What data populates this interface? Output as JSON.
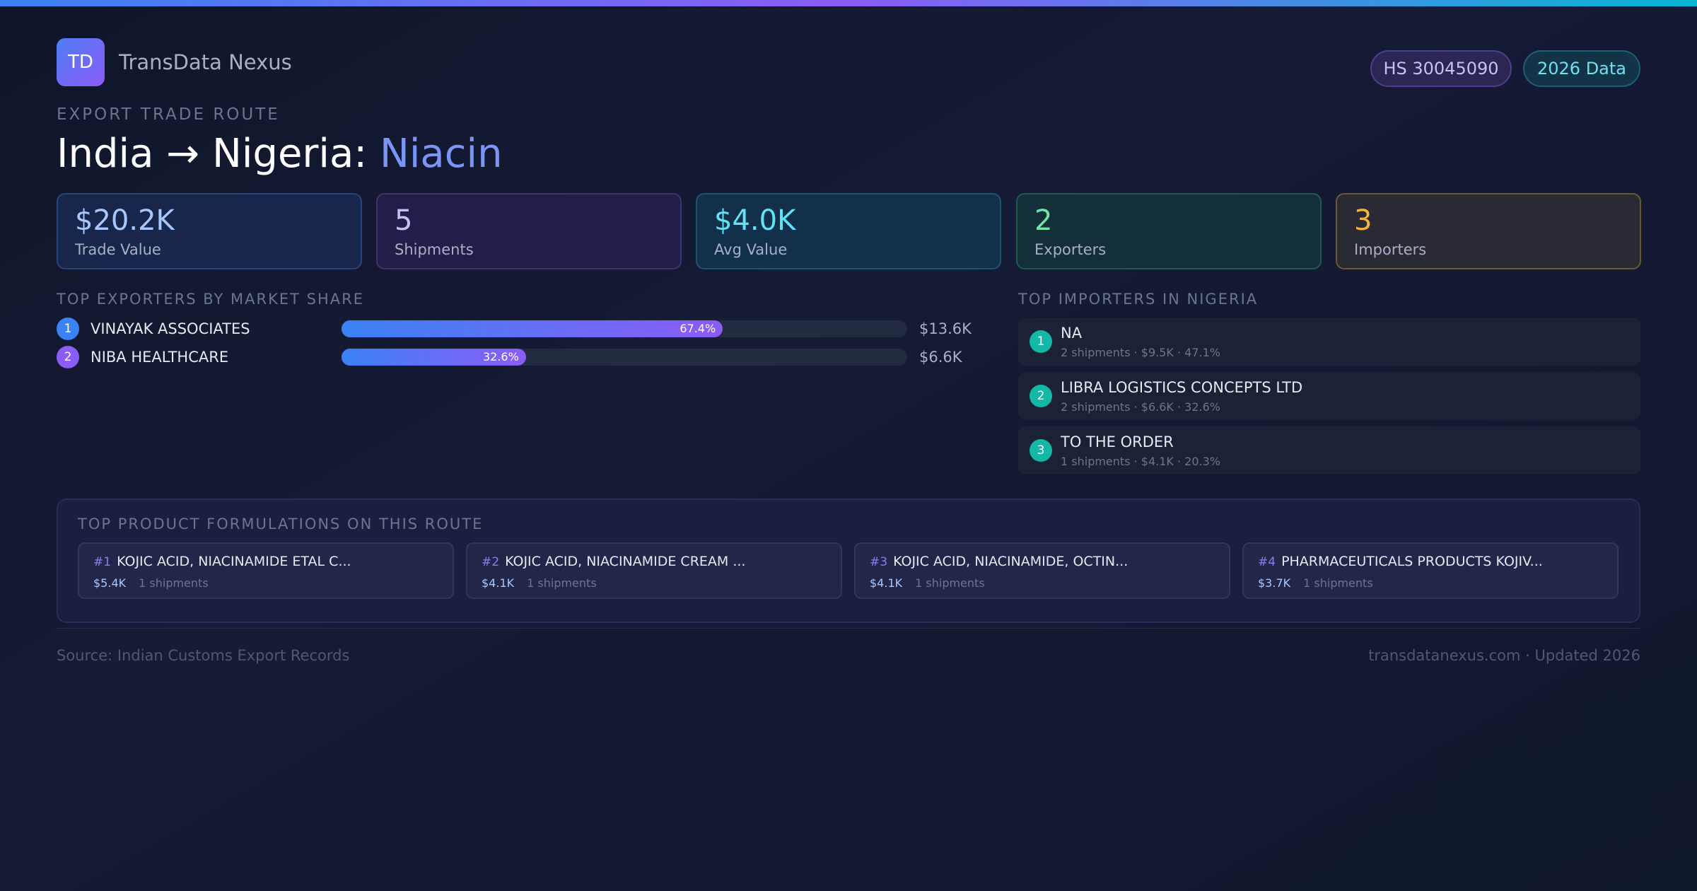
{
  "brand": {
    "logo_text": "TD",
    "name": "TransData Nexus"
  },
  "badges": {
    "hs_code": "HS 30045090",
    "data_year": "2026 Data"
  },
  "eyebrow": "EXPORT TRADE ROUTE",
  "route": {
    "prefix": "India → Nigeria: ",
    "product": "Niacin"
  },
  "stats": [
    {
      "value": "$20.2K",
      "label": "Trade Value"
    },
    {
      "value": "5",
      "label": "Shipments"
    },
    {
      "value": "$4.0K",
      "label": "Avg Value"
    },
    {
      "value": "2",
      "label": "Exporters"
    },
    {
      "value": "3",
      "label": "Importers"
    }
  ],
  "exporters": {
    "heading": "TOP EXPORTERS BY MARKET SHARE",
    "items": [
      {
        "rank": "1",
        "name": "VINAYAK ASSOCIATES",
        "share": 67.4,
        "share_label": "67.4%",
        "value": "$13.6K",
        "rank_color": "#3b82f6"
      },
      {
        "rank": "2",
        "name": "NIBA HEALTHCARE",
        "share": 32.6,
        "share_label": "32.6%",
        "value": "$6.6K",
        "rank_color": "#8b5cf6"
      }
    ]
  },
  "importers": {
    "heading": "TOP IMPORTERS IN NIGERIA",
    "items": [
      {
        "rank": "1",
        "name": "NA",
        "meta": "2 shipments · $9.5K · 47.1%"
      },
      {
        "rank": "2",
        "name": "LIBRA LOGISTICS CONCEPTS LTD",
        "meta": "2 shipments · $6.6K · 32.6%"
      },
      {
        "rank": "3",
        "name": "TO THE ORDER",
        "meta": "1 shipments · $4.1K · 20.3%"
      }
    ]
  },
  "products": {
    "heading": "TOP PRODUCT FORMULATIONS ON THIS ROUTE",
    "items": [
      {
        "num": "#1",
        "name": "KOJIC ACID, NIACINAMIDE ETAL C...",
        "value": "$5.4K",
        "shipments": "1 shipments"
      },
      {
        "num": "#2",
        "name": "KOJIC ACID, NIACINAMIDE CREAM ...",
        "value": "$4.1K",
        "shipments": "1 shipments"
      },
      {
        "num": "#3",
        "name": "KOJIC ACID, NIACINAMIDE, OCTIN...",
        "value": "$4.1K",
        "shipments": "1 shipments"
      },
      {
        "num": "#4",
        "name": "PHARMACEUTICALS PRODUCTS KOJIV...",
        "value": "$3.7K",
        "shipments": "1 shipments"
      }
    ]
  },
  "footer": {
    "source": "Source: Indian Customs Export Records",
    "site": "transdatanexus.com · Updated 2026"
  }
}
